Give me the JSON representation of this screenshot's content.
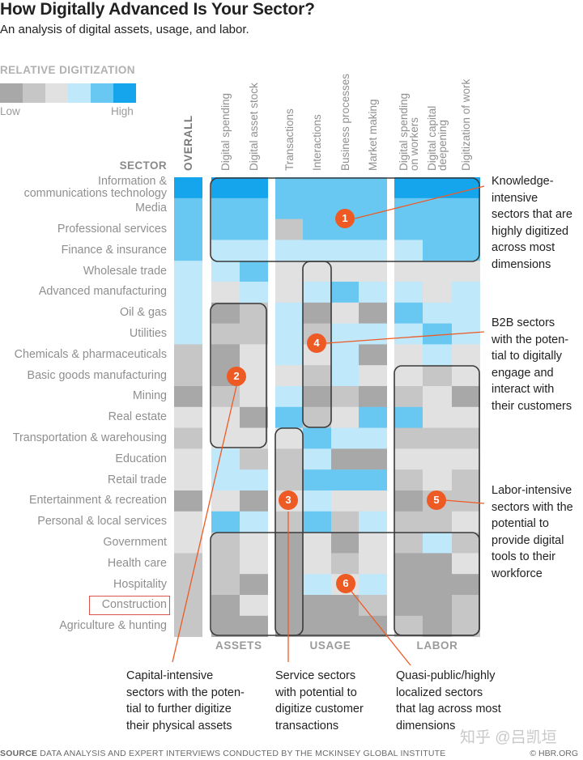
{
  "header": {
    "title": "How Digitally Advanced Is Your Sector?",
    "subtitle": "An analysis of digital assets, usage, and labor."
  },
  "legend": {
    "title": "RELATIVE DIGITIZATION",
    "low_label": "Low",
    "high_label": "High",
    "colors": [
      "#a8a8a8",
      "#c6c6c6",
      "#e1e1e1",
      "#bfe8fa",
      "#69c8f2",
      "#15a5ec"
    ]
  },
  "sector_header": "SECTOR",
  "annotations": {
    "a1": "Knowledge-intensive sectors that are highly digitized across most dimensions",
    "a2": "Capital-intensive sectors with the potential to further digitize their physical assets",
    "a3": "Service sectors with potential to digitize customer transactions",
    "a4": "B2B sectors with the potential to digitally engage and interact with their customers",
    "a5": "Labor-intensive sectors with the potential to provide digital tools to their workforce",
    "a6": "Quasi-public/highly localized sectors that lag across most dimensions"
  },
  "annotation_lines": {
    "a1": [
      "Knowledge-",
      "intensive",
      "sectors that are",
      "highly digitized",
      "across most",
      "dimensions"
    ],
    "a2": [
      "Capital-intensive",
      "sectors with the poten-",
      "tial to further digitize",
      "their physical assets"
    ],
    "a3": [
      "Service sectors",
      "with potential to",
      "digitize customer",
      "transactions"
    ],
    "a4": [
      "B2B sectors",
      "with the poten-",
      "tial to digitally",
      "engage and",
      "interact with",
      "their customers"
    ],
    "a5": [
      "Labor-intensive",
      "sectors with the",
      "potential to",
      "provide digital",
      "tools to their",
      "workforce"
    ],
    "a6": [
      "Quasi-public/highly",
      "localized sectors",
      "that lag across most",
      "dimensions"
    ]
  },
  "callouts": [
    "1",
    "2",
    "3",
    "4",
    "5",
    "6"
  ],
  "source": {
    "label": "SOURCE",
    "text": "DATA ANALYSIS AND EXPERT INTERVIEWS CONDUCTED BY THE MCKINSEY GLOBAL INSTITUTE",
    "credit": "© HBR.ORG"
  },
  "watermark": "知乎 @吕凯垣",
  "chart_data": {
    "type": "heatmap",
    "title": "How Digitally Advanced Is Your Sector?",
    "subtitle": "An analysis of digital assets, usage, and labor.",
    "scale": "1 = Low ... 6 = High",
    "columns": [
      "OVERALL",
      "Digital spending",
      "Digital asset stock",
      "Transactions",
      "Interactions",
      "Business processes",
      "Market making",
      "Digital spending on workers",
      "Digital capital deepening",
      "Digitization of work"
    ],
    "column_lines": [
      [
        "OVERALL"
      ],
      [
        "Digital spending"
      ],
      [
        "Digital asset stock"
      ],
      [
        "Transactions"
      ],
      [
        "Interactions"
      ],
      [
        "Business processes"
      ],
      [
        "Market making"
      ],
      [
        "Digital spending",
        "on workers"
      ],
      [
        "Digital capital",
        "deepening"
      ],
      [
        "Digitization of work"
      ]
    ],
    "groups": [
      {
        "name": "ASSETS",
        "columns": [
          1,
          2
        ]
      },
      {
        "name": "USAGE",
        "columns": [
          3,
          4,
          5,
          6
        ]
      },
      {
        "name": "LABOR",
        "columns": [
          7,
          8,
          9
        ]
      }
    ],
    "rows": [
      "Information & communications technology",
      "Media",
      "Professional services",
      "Finance & insurance",
      "Wholesale trade",
      "Advanced manufacturing",
      "Oil & gas",
      "Utilities",
      "Chemicals & pharmaceuticals",
      "Basic goods manufacturing",
      "Mining",
      "Real estate",
      "Transportation & warehousing",
      "Education",
      "Retail trade",
      "Entertainment & recreation",
      "Personal & local services",
      "Government",
      "Health care",
      "Hospitality",
      "Construction",
      "Agriculture & hunting"
    ],
    "row_lines": [
      [
        "Information &",
        "communications technology"
      ],
      [
        "Media"
      ],
      [
        "Professional services"
      ],
      [
        "Finance & insurance"
      ],
      [
        "Wholesale trade"
      ],
      [
        "Advanced manufacturing"
      ],
      [
        "Oil & gas"
      ],
      [
        "Utilities"
      ],
      [
        "Chemicals & pharmaceuticals"
      ],
      [
        "Basic goods manufacturing"
      ],
      [
        "Mining"
      ],
      [
        "Real estate"
      ],
      [
        "Transportation & warehousing"
      ],
      [
        "Education"
      ],
      [
        "Retail trade"
      ],
      [
        "Entertainment & recreation"
      ],
      [
        "Personal & local services"
      ],
      [
        "Government"
      ],
      [
        "Health care"
      ],
      [
        "Hospitality"
      ],
      [
        "Construction"
      ],
      [
        "Agriculture & hunting"
      ]
    ],
    "values": [
      [
        6,
        6,
        6,
        5,
        5,
        5,
        5,
        6,
        6,
        6
      ],
      [
        5,
        5,
        5,
        5,
        5,
        5,
        5,
        5,
        5,
        5
      ],
      [
        5,
        5,
        5,
        2,
        5,
        5,
        5,
        5,
        5,
        5
      ],
      [
        5,
        4,
        4,
        4,
        4,
        4,
        4,
        4,
        5,
        5
      ],
      [
        4,
        4,
        5,
        3,
        3,
        3,
        3,
        3,
        3,
        3
      ],
      [
        4,
        3,
        4,
        3,
        4,
        5,
        4,
        4,
        3,
        4
      ],
      [
        4,
        1,
        2,
        4,
        1,
        3,
        1,
        5,
        4,
        4
      ],
      [
        4,
        2,
        2,
        4,
        2,
        4,
        4,
        4,
        5,
        4
      ],
      [
        2,
        1,
        3,
        4,
        3,
        4,
        1,
        3,
        4,
        3
      ],
      [
        2,
        1,
        3,
        3,
        2,
        4,
        3,
        3,
        2,
        3
      ],
      [
        1,
        2,
        3,
        4,
        1,
        2,
        1,
        2,
        3,
        1
      ],
      [
        3,
        3,
        1,
        5,
        2,
        3,
        5,
        5,
        3,
        3
      ],
      [
        2,
        3,
        3,
        3,
        5,
        4,
        4,
        2,
        2,
        2
      ],
      [
        3,
        4,
        2,
        2,
        4,
        1,
        1,
        3,
        3,
        3
      ],
      [
        3,
        4,
        4,
        2,
        5,
        5,
        5,
        2,
        3,
        2
      ],
      [
        1,
        3,
        1,
        3,
        4,
        3,
        3,
        1,
        2,
        2
      ],
      [
        3,
        5,
        4,
        2,
        5,
        2,
        4,
        2,
        2,
        3
      ],
      [
        3,
        2,
        3,
        1,
        3,
        1,
        3,
        2,
        4,
        2
      ],
      [
        2,
        2,
        3,
        1,
        3,
        2,
        3,
        1,
        1,
        3
      ],
      [
        2,
        2,
        1,
        1,
        4,
        3,
        4,
        1,
        1,
        1
      ],
      [
        2,
        1,
        3,
        1,
        1,
        1,
        2,
        1,
        1,
        2
      ],
      [
        2,
        1,
        1,
        1,
        1,
        1,
        1,
        2,
        1,
        2
      ]
    ],
    "highlighted_row": "Construction"
  }
}
